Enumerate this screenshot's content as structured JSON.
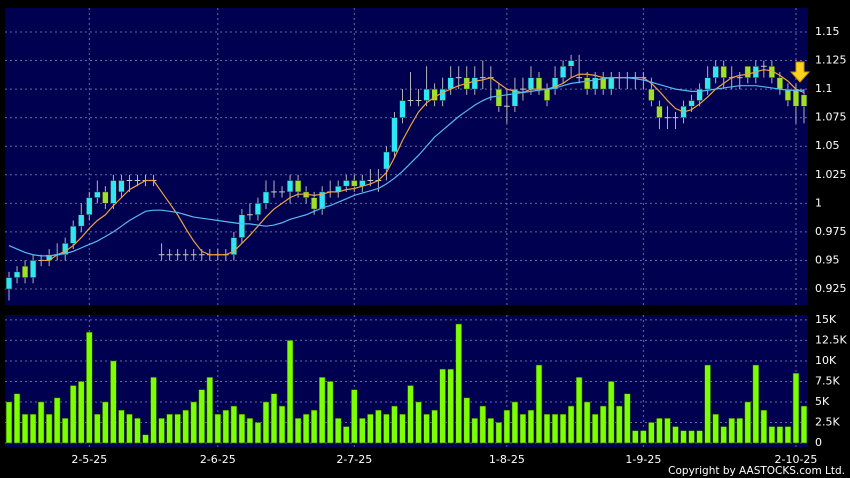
{
  "chart_data": [
    {
      "type": "candlestick",
      "open": [
        0.925,
        0.935,
        0.945,
        0.935,
        0.95,
        0.95,
        0.955,
        0.955,
        0.965,
        0.98,
        0.99,
        1.005,
        1.01,
        1.0,
        1.01,
        1.02,
        1.02,
        1.02,
        1.02,
        0.955,
        0.955,
        0.955,
        0.955,
        0.955,
        0.955,
        0.955,
        0.955,
        0.955,
        0.955,
        0.97,
        0.99,
        0.99,
        1.0,
        1.01,
        1.01,
        1.01,
        1.02,
        1.01,
        1.005,
        0.995,
        1.01,
        1.01,
        1.015,
        1.02,
        1.015,
        1.02,
        1.02,
        1.03,
        1.045,
        1.075,
        1.09,
        1.09,
        1.09,
        1.1,
        1.09,
        1.1,
        1.11,
        1.11,
        1.1,
        1.11,
        1.11,
        1.1,
        1.085,
        1.085,
        1.1,
        1.1,
        1.11,
        1.1,
        1.1,
        1.11,
        1.12,
        1.11,
        1.11,
        1.1,
        1.11,
        1.1,
        1.11,
        1.11,
        1.11,
        1.11,
        1.1,
        1.085,
        1.075,
        1.075,
        1.075,
        1.085,
        1.09,
        1.1,
        1.11,
        1.12,
        1.11,
        1.11,
        1.12,
        1.11,
        1.12,
        1.12,
        1.11,
        1.1,
        1.1,
        1.095
      ],
      "high": [
        0.94,
        0.945,
        0.95,
        0.955,
        0.955,
        0.96,
        0.965,
        0.97,
        0.985,
        1.0,
        1.01,
        1.02,
        1.015,
        1.025,
        1.025,
        1.025,
        1.025,
        1.025,
        1.025,
        0.965,
        0.96,
        0.96,
        0.96,
        0.96,
        0.96,
        0.96,
        0.96,
        0.96,
        0.975,
        0.995,
        1.0,
        1.005,
        1.02,
        1.02,
        1.015,
        1.025,
        1.025,
        1.015,
        1.01,
        1.015,
        1.02,
        1.02,
        1.025,
        1.025,
        1.025,
        1.03,
        1.03,
        1.05,
        1.08,
        1.1,
        1.115,
        1.1,
        1.12,
        1.105,
        1.11,
        1.12,
        1.12,
        1.12,
        1.12,
        1.125,
        1.12,
        1.105,
        1.1,
        1.11,
        1.11,
        1.12,
        1.115,
        1.105,
        1.12,
        1.125,
        1.13,
        1.13,
        1.115,
        1.115,
        1.115,
        1.115,
        1.115,
        1.115,
        1.115,
        1.115,
        1.11,
        1.09,
        1.085,
        1.08,
        1.09,
        1.095,
        1.105,
        1.12,
        1.125,
        1.125,
        1.12,
        1.115,
        1.12,
        1.125,
        1.125,
        1.125,
        1.115,
        1.105,
        1.105,
        1.1
      ],
      "low": [
        0.915,
        0.93,
        0.93,
        0.93,
        0.945,
        0.945,
        0.95,
        0.95,
        0.96,
        0.975,
        0.985,
        1.0,
        0.995,
        0.995,
        1.005,
        1.01,
        1.015,
        1.015,
        1.015,
        0.95,
        0.95,
        0.95,
        0.95,
        0.95,
        0.95,
        0.95,
        0.95,
        0.95,
        0.95,
        0.965,
        0.985,
        0.985,
        0.995,
        1.005,
        1.005,
        1.0,
        1.005,
        1.0,
        0.99,
        0.99,
        1.005,
        1.005,
        1.01,
        1.01,
        1.01,
        1.015,
        1.01,
        1.02,
        1.04,
        1.07,
        1.085,
        1.085,
        1.085,
        1.085,
        1.085,
        1.095,
        1.1,
        1.095,
        1.095,
        1.1,
        1.09,
        1.08,
        1.07,
        1.08,
        1.09,
        1.095,
        1.095,
        1.085,
        1.095,
        1.105,
        1.11,
        1.105,
        1.095,
        1.095,
        1.095,
        1.095,
        1.1,
        1.1,
        1.1,
        1.1,
        1.085,
        1.065,
        1.065,
        1.065,
        1.07,
        1.08,
        1.085,
        1.095,
        1.105,
        1.1,
        1.1,
        1.1,
        1.105,
        1.105,
        1.11,
        1.105,
        1.095,
        1.085,
        1.07,
        1.07
      ],
      "close": [
        0.935,
        0.94,
        0.935,
        0.95,
        0.95,
        0.955,
        0.955,
        0.965,
        0.98,
        0.99,
        1.005,
        1.01,
        1.0,
        1.02,
        1.02,
        1.02,
        1.02,
        1.02,
        1.02,
        0.955,
        0.955,
        0.955,
        0.955,
        0.955,
        0.955,
        0.955,
        0.955,
        0.955,
        0.97,
        0.99,
        0.99,
        1.0,
        1.01,
        1.01,
        1.01,
        1.02,
        1.01,
        1.005,
        0.995,
        1.01,
        1.01,
        1.015,
        1.02,
        1.015,
        1.02,
        1.02,
        1.02,
        1.045,
        1.075,
        1.09,
        1.09,
        1.09,
        1.1,
        1.09,
        1.1,
        1.11,
        1.11,
        1.1,
        1.11,
        1.11,
        1.11,
        1.085,
        1.085,
        1.1,
        1.1,
        1.11,
        1.1,
        1.09,
        1.11,
        1.12,
        1.125,
        1.11,
        1.1,
        1.11,
        1.1,
        1.11,
        1.11,
        1.11,
        1.11,
        1.11,
        1.09,
        1.075,
        1.075,
        1.075,
        1.085,
        1.09,
        1.1,
        1.11,
        1.12,
        1.11,
        1.11,
        1.11,
        1.11,
        1.12,
        1.12,
        1.11,
        1.1,
        1.09,
        1.085,
        1.085
      ],
      "up_color": "#2ee6f5",
      "down_color": "#9ee02a",
      "doji_color": "#c8c8c8",
      "wick_color": "#b4b4b4",
      "lines": [
        {
          "color": "#f0a040",
          "values": [
            null,
            null,
            null,
            null,
            0.95,
            0.95,
            0.955,
            0.958,
            0.963,
            0.97,
            0.978,
            0.985,
            0.99,
            0.998,
            1.005,
            1.012,
            1.016,
            1.02,
            1.02,
            1.01,
            1.0,
            0.99,
            0.978,
            0.967,
            0.958,
            0.955,
            0.955,
            0.955,
            0.958,
            0.965,
            0.972,
            0.98,
            0.988,
            0.995,
            1.0,
            1.005,
            1.008,
            1.008,
            1.007,
            1.008,
            1.01,
            1.01,
            1.012,
            1.013,
            1.015,
            1.017,
            1.02,
            1.027,
            1.04,
            1.055,
            1.068,
            1.08,
            1.088,
            1.093,
            1.097,
            1.1,
            1.103,
            1.105,
            1.107,
            1.108,
            1.11,
            1.105,
            1.1,
            1.098,
            1.097,
            1.1,
            1.1,
            1.1,
            1.102,
            1.105,
            1.11,
            1.113,
            1.113,
            1.112,
            1.11,
            1.11,
            1.11,
            1.11,
            1.11,
            1.11,
            1.105,
            1.098,
            1.09,
            1.083,
            1.08,
            1.082,
            1.087,
            1.093,
            1.1,
            1.105,
            1.11,
            1.112,
            1.113,
            1.115,
            1.117,
            1.116,
            1.112,
            1.107,
            1.1,
            1.097
          ]
        },
        {
          "color": "#5ab8f0",
          "values": [
            0.963,
            0.96,
            0.957,
            0.955,
            0.954,
            0.954,
            0.955,
            0.956,
            0.958,
            0.961,
            0.964,
            0.967,
            0.971,
            0.975,
            0.98,
            0.985,
            0.989,
            0.993,
            0.994,
            0.994,
            0.993,
            0.992,
            0.99,
            0.988,
            0.987,
            0.986,
            0.985,
            0.984,
            0.983,
            0.982,
            0.982,
            0.981,
            0.98,
            0.981,
            0.983,
            0.986,
            0.988,
            0.99,
            0.993,
            0.996,
            0.998,
            1.001,
            1.004,
            1.007,
            1.009,
            1.011,
            1.013,
            1.017,
            1.022,
            1.028,
            1.035,
            1.042,
            1.05,
            1.058,
            1.064,
            1.07,
            1.076,
            1.081,
            1.086,
            1.09,
            1.093,
            1.094,
            1.095,
            1.096,
            1.097,
            1.098,
            1.099,
            1.1,
            1.101,
            1.103,
            1.105,
            1.106,
            1.107,
            1.108,
            1.109,
            1.11,
            1.11,
            1.11,
            1.109,
            1.108,
            1.106,
            1.104,
            1.102,
            1.1,
            1.099,
            1.098,
            1.098,
            1.099,
            1.1,
            1.101,
            1.102,
            1.103,
            1.103,
            1.103,
            1.102,
            1.101,
            1.1,
            1.099,
            1.099,
            1.099
          ]
        }
      ],
      "ylim": [
        0.911,
        1.171
      ],
      "yticks": [
        0.925,
        0.95,
        0.975,
        1,
        1.025,
        1.05,
        1.075,
        1.1,
        1.125,
        1.15
      ],
      "grid": true
    },
    {
      "type": "bar",
      "categories": [
        null,
        null,
        null,
        null,
        null,
        null,
        null,
        null,
        null,
        null,
        "2-5-25",
        null,
        null,
        null,
        null,
        null,
        null,
        null,
        null,
        null,
        null,
        null,
        null,
        null,
        null,
        null,
        "2-6-25",
        null,
        null,
        null,
        null,
        null,
        null,
        null,
        null,
        null,
        null,
        null,
        null,
        null,
        null,
        null,
        null,
        "2-7-25",
        null,
        null,
        null,
        null,
        null,
        null,
        null,
        null,
        null,
        null,
        null,
        null,
        null,
        null,
        null,
        null,
        null,
        null,
        "1-8-25",
        null,
        null,
        null,
        null,
        null,
        null,
        null,
        null,
        null,
        null,
        null,
        null,
        null,
        null,
        null,
        null,
        "1-9-25",
        null,
        null,
        null,
        null,
        null,
        null,
        null,
        null,
        null,
        null,
        null,
        null,
        null,
        null,
        null,
        null,
        null,
        null,
        "2-10-25",
        null
      ],
      "values": [
        5000,
        6000,
        3500,
        3500,
        5000,
        3500,
        5500,
        3000,
        7000,
        7500,
        13500,
        3500,
        5000,
        10000,
        4000,
        3500,
        3000,
        1000,
        8000,
        3000,
        3500,
        3500,
        4000,
        5000,
        6500,
        8000,
        3500,
        4000,
        4500,
        3500,
        3000,
        2500,
        5000,
        6000,
        4500,
        12500,
        3000,
        3500,
        4000,
        8000,
        7500,
        3000,
        2000,
        6500,
        3000,
        3500,
        4000,
        3500,
        4500,
        3500,
        7000,
        5000,
        3500,
        4000,
        9000,
        9000,
        14500,
        5500,
        3000,
        4500,
        3000,
        2500,
        4000,
        5000,
        3500,
        4000,
        9500,
        3500,
        3500,
        3500,
        4500,
        8000,
        5000,
        3500,
        4500,
        7500,
        4500,
        6000,
        1500,
        1500,
        2500,
        3000,
        3000,
        2000,
        1500,
        1500,
        1500,
        9500,
        3500,
        2000,
        3000,
        3000,
        5000,
        9500,
        4000,
        2000,
        2000,
        2000,
        8500,
        4500
      ],
      "color": "#7cff00",
      "ylim": [
        -490,
        15600
      ],
      "yticks": [
        0,
        {
          "value": 2500,
          "label": "2.5K"
        },
        {
          "value": 5000,
          "label": "5K"
        },
        {
          "value": 7500,
          "label": "7.5K"
        },
        {
          "value": 10000,
          "label": "10K"
        },
        {
          "value": 12500,
          "label": "12.5K"
        },
        {
          "value": 15000,
          "label": "15K"
        }
      ],
      "grid": true
    }
  ],
  "copyright": "Copyright by AASTOCKS.com Ltd."
}
